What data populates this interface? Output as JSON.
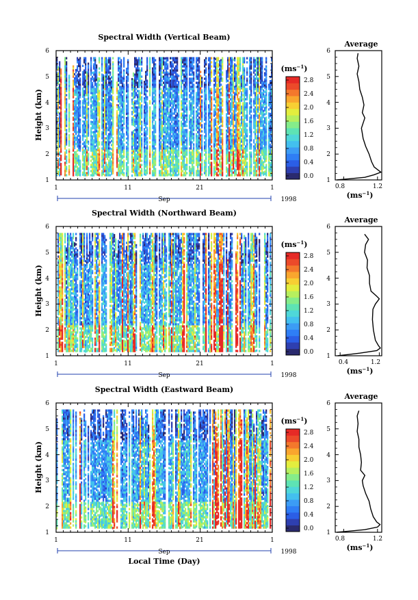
{
  "chart_data": [
    {
      "type": "heatmap",
      "title": "Spectral Width (Vertical Beam)",
      "ylabel": "Height (km)",
      "y_ticks": [
        "1",
        "2",
        "3",
        "4",
        "5",
        "6"
      ],
      "ylim": [
        1,
        6
      ],
      "x_ticks": [
        "1",
        "11",
        "21",
        "1"
      ],
      "month_label": "Sep",
      "year_label": "1998",
      "colorbar": {
        "unit": "(ms⁻¹)",
        "range": [
          0.0,
          2.8
        ],
        "tick_labels": [
          "0.0",
          "0.4",
          "0.8",
          "1.2",
          "1.6",
          "2.0",
          "2.4",
          "2.8"
        ],
        "colors": [
          "#2a2a6e",
          "#2e3fb0",
          "#2b5ee6",
          "#2f7ef5",
          "#3c9cf5",
          "#43c0ef",
          "#4fd7d9",
          "#5ee3b4",
          "#85ec8a",
          "#b7ef5e",
          "#e3ee3e",
          "#f7cf33",
          "#f9a62e",
          "#f4782c",
          "#ec4a2a",
          "#e62a26"
        ]
      },
      "profile": {
        "title": "Average",
        "x_ticks": [
          "0.8",
          "1.2"
        ],
        "xlim": [
          0.7,
          1.25
        ],
        "xlabel": "(ms⁻¹)",
        "heights": [
          1.0,
          1.1,
          1.2,
          1.3,
          1.35,
          1.5,
          1.7,
          2.0,
          2.3,
          2.6,
          2.8,
          3.0,
          3.2,
          3.4,
          3.6,
          3.9,
          4.2,
          4.5,
          4.8,
          5.1,
          5.4,
          5.7,
          5.9
        ],
        "values": [
          0.72,
          1.05,
          1.16,
          1.24,
          1.22,
          1.16,
          1.13,
          1.1,
          1.06,
          1.03,
          1.02,
          1.01,
          1.03,
          1.05,
          1.02,
          1.04,
          1.02,
          0.99,
          0.98,
          0.96,
          0.98,
          0.96,
          0.97
        ]
      }
    },
    {
      "type": "heatmap",
      "title": "Spectral Width (Northward Beam)",
      "ylabel": "Height (km)",
      "y_ticks": [
        "1",
        "2",
        "3",
        "4",
        "5",
        "6"
      ],
      "ylim": [
        1,
        6
      ],
      "x_ticks": [
        "1",
        "11",
        "21",
        "1"
      ],
      "month_label": "Sep",
      "year_label": "1998",
      "colorbar": {
        "unit": "(ms⁻¹)",
        "range": [
          0.0,
          2.8
        ],
        "tick_labels": [
          "0.0",
          "0.4",
          "0.8",
          "1.2",
          "1.6",
          "2.0",
          "2.4",
          "2.8"
        ],
        "colors": [
          "#2a2a6e",
          "#2e3fb0",
          "#2b5ee6",
          "#2f7ef5",
          "#3c9cf5",
          "#43c0ef",
          "#4fd7d9",
          "#5ee3b4",
          "#85ec8a",
          "#b7ef5e",
          "#e3ee3e",
          "#f7cf33",
          "#f9a62e",
          "#f4782c",
          "#ec4a2a",
          "#e62a26"
        ]
      },
      "profile": {
        "title": "Average",
        "x_ticks": [
          "0.4",
          "1.2"
        ],
        "xlim": [
          0.3,
          1.25
        ],
        "xlabel": "(ms⁻¹)",
        "heights": [
          1.0,
          1.1,
          1.2,
          1.3,
          1.4,
          1.6,
          2.0,
          2.4,
          2.8,
          3.0,
          3.2,
          3.3,
          3.5,
          3.8,
          4.1,
          4.4,
          4.7,
          5.0,
          5.3,
          5.5,
          5.7
        ],
        "values": [
          0.35,
          0.8,
          1.15,
          1.22,
          1.18,
          1.12,
          1.08,
          1.06,
          1.07,
          1.12,
          1.2,
          1.15,
          1.03,
          1.0,
          1.0,
          0.95,
          0.96,
          0.9,
          0.92,
          0.98,
          0.9
        ]
      }
    },
    {
      "type": "heatmap",
      "title": "Spectral Width (Eastward Beam)",
      "ylabel": "Height (km)",
      "y_ticks": [
        "1",
        "2",
        "3",
        "4",
        "5",
        "6"
      ],
      "ylim": [
        1,
        6
      ],
      "x_ticks": [
        "1",
        "11",
        "21",
        "1"
      ],
      "month_label": "Sep",
      "year_label": "1998",
      "xlabel": "Local Time (Day)",
      "colorbar": {
        "unit": "(ms⁻¹)",
        "range": [
          0.0,
          2.8
        ],
        "tick_labels": [
          "0.0",
          "0.4",
          "0.8",
          "1.2",
          "1.6",
          "2.0",
          "2.4",
          "2.8"
        ],
        "colors": [
          "#2a2a6e",
          "#2e3fb0",
          "#2b5ee6",
          "#2f7ef5",
          "#3c9cf5",
          "#43c0ef",
          "#4fd7d9",
          "#5ee3b4",
          "#85ec8a",
          "#b7ef5e",
          "#e3ee3e",
          "#f7cf33",
          "#f9a62e",
          "#f4782c",
          "#ec4a2a",
          "#e62a26"
        ]
      },
      "profile": {
        "title": "Average",
        "x_ticks": [
          "0.8",
          "1.2"
        ],
        "xlim": [
          0.7,
          1.25
        ],
        "xlabel": "(ms⁻¹)",
        "heights": [
          1.0,
          1.1,
          1.2,
          1.3,
          1.4,
          1.6,
          1.9,
          2.2,
          2.5,
          2.8,
          3.0,
          3.2,
          3.4,
          3.7,
          4.0,
          4.3,
          4.6,
          4.9,
          5.2,
          5.5,
          5.7
        ],
        "values": [
          0.72,
          1.05,
          1.2,
          1.23,
          1.19,
          1.15,
          1.12,
          1.1,
          1.06,
          1.03,
          1.02,
          1.05,
          1.0,
          1.01,
          1.0,
          0.98,
          0.98,
          0.96,
          0.97,
          0.96,
          0.98
        ]
      }
    }
  ]
}
